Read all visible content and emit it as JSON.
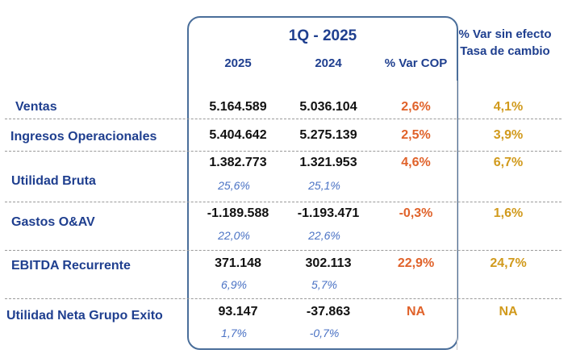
{
  "header": {
    "period": "1Q - 2025",
    "col_2025": "2025",
    "col_2024": "2024",
    "col_var": "% Var COP",
    "col_fx": "% Var sin efecto Tasa de cambio"
  },
  "rows": [
    {
      "label": "Ventas",
      "v2025": "5.164.589",
      "v2024": "5.036.104",
      "p2025": "",
      "p2024": "",
      "var": "2,6%",
      "fx": "4,1%"
    },
    {
      "label": "Ingresos Operacionales",
      "v2025": "5.404.642",
      "v2024": "5.275.139",
      "p2025": "",
      "p2024": "",
      "var": "2,5%",
      "fx": "3,9%"
    },
    {
      "label": "Utilidad Bruta",
      "v2025": "1.382.773",
      "v2024": "1.321.953",
      "p2025": "25,6%",
      "p2024": "25,1%",
      "var": "4,6%",
      "fx": "6,7%"
    },
    {
      "label": "Gastos O&AV",
      "v2025": "-1.189.588",
      "v2024": "-1.193.471",
      "p2025": "22,0%",
      "p2024": "22,6%",
      "var": "-0,3%",
      "fx": "1,6%"
    },
    {
      "label": "EBITDA Recurrente",
      "v2025": "371.148",
      "v2024": "302.113",
      "p2025": "6,9%",
      "p2024": "5,7%",
      "var": "22,9%",
      "fx": "24,7%"
    },
    {
      "label": "Utilidad Neta Grupo Exito",
      "v2025": "93.147",
      "v2024": "-37.863",
      "p2025": "1,7%",
      "p2024": "-0,7%",
      "var": "NA",
      "fx": "NA"
    }
  ],
  "colors": {
    "var": "#e0622a",
    "fx": "#d19a1c",
    "label": "#1f3f8f",
    "pct": "#4a72c4"
  }
}
